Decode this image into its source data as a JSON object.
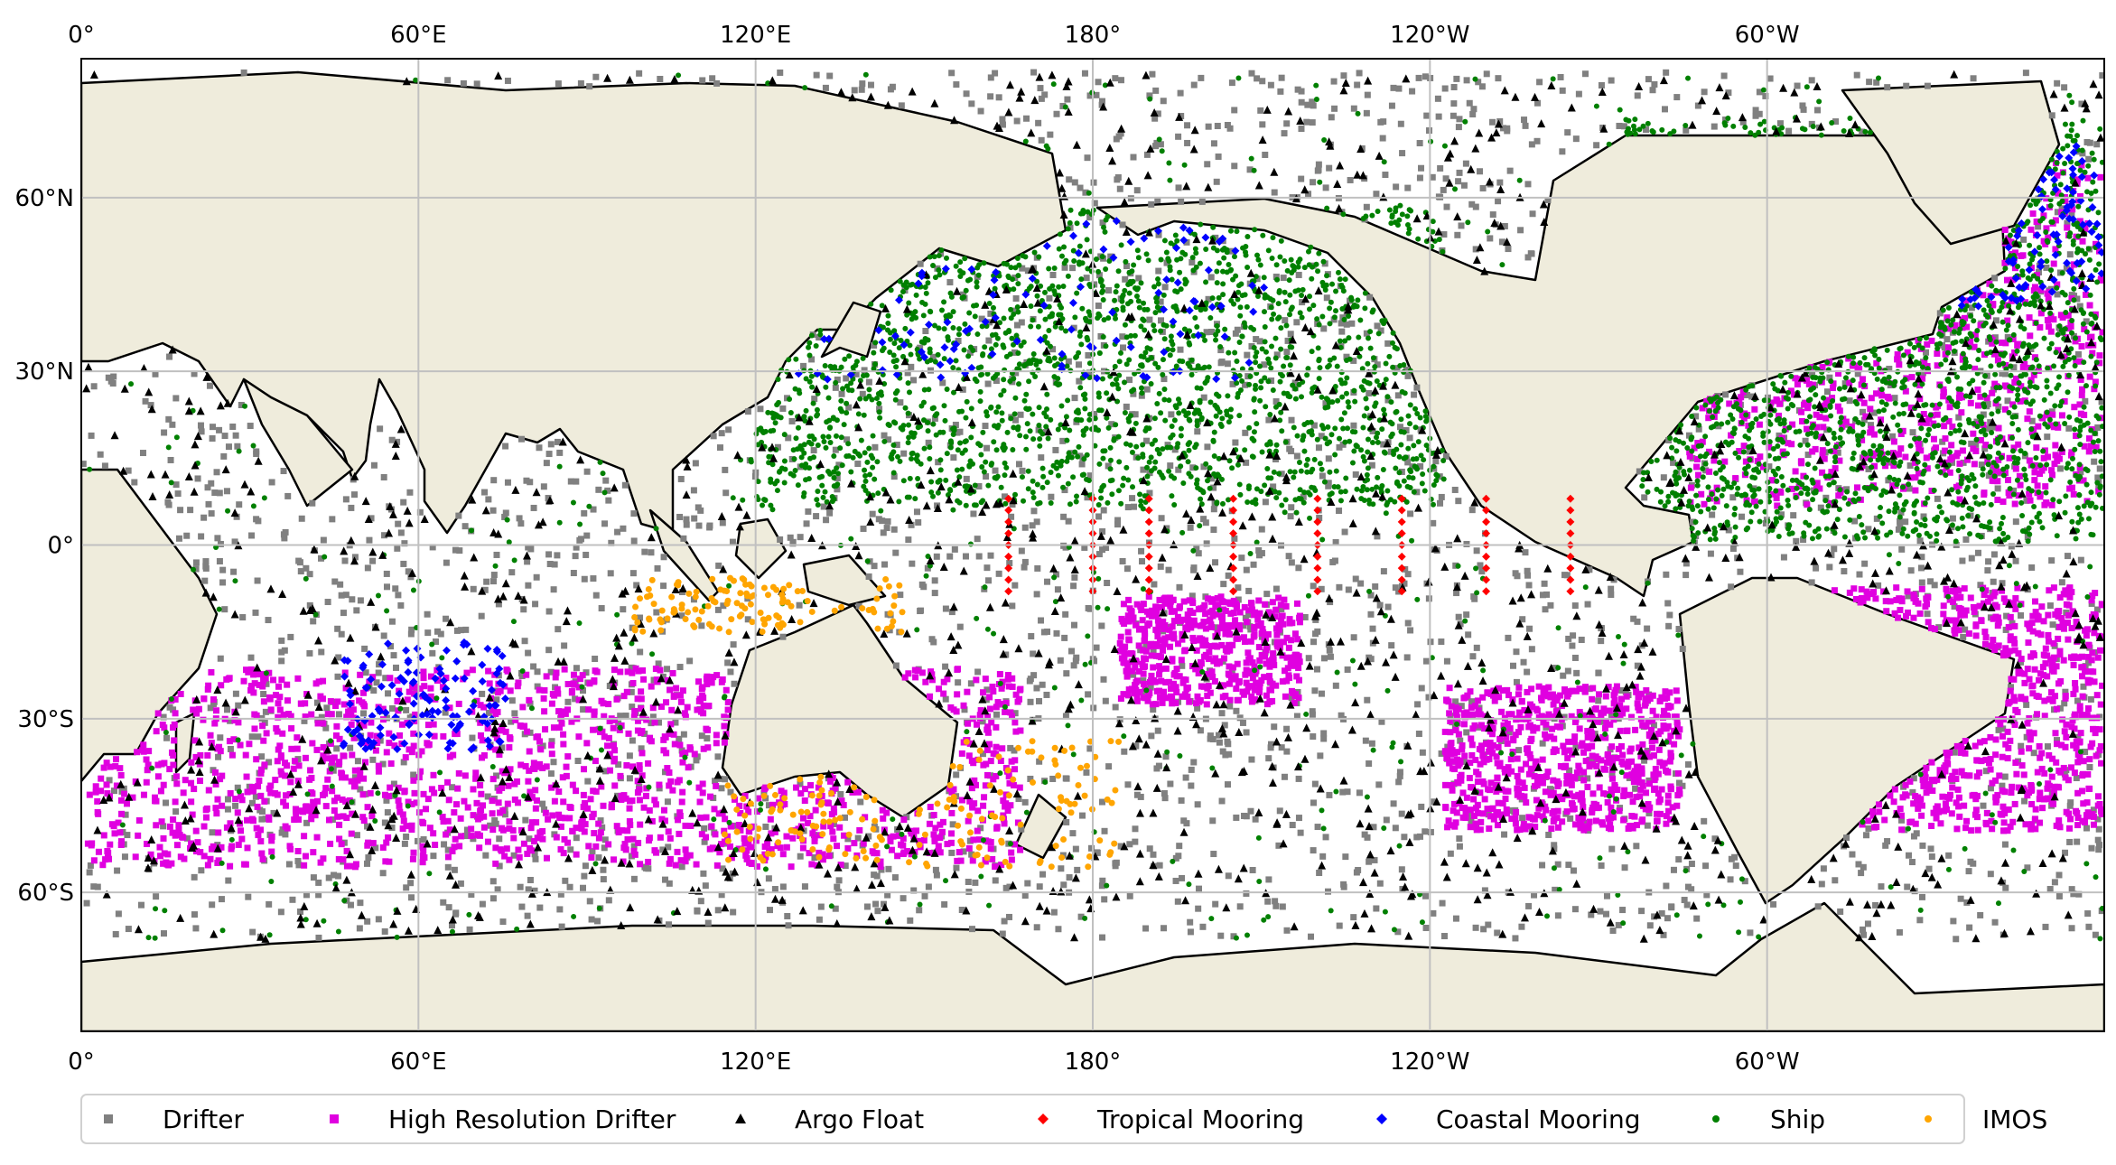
{
  "map": {
    "projection": "PlateCarree",
    "central_longitude": 180,
    "colors": {
      "land": "#efecdc",
      "ocean": "#ffffff",
      "coastline": "#000000",
      "gridline": "#c0c0c0",
      "frame": "#000000"
    },
    "top_ticks": [
      "0°",
      "60°E",
      "120°E",
      "180°",
      "120°W",
      "60°W"
    ],
    "bottom_ticks": [
      "0°",
      "60°E",
      "120°E",
      "180°",
      "120°W",
      "60°W"
    ],
    "left_ticks": [
      "60°N",
      "30°N",
      "0°",
      "30°S",
      "60°S"
    ],
    "gridlines_lon": [
      0,
      60,
      120,
      180,
      -120,
      -60
    ],
    "gridlines_lat": [
      60,
      30,
      0,
      -30,
      -60
    ]
  },
  "legend": {
    "placement": "bottom-center",
    "items": [
      {
        "label": "Drifter",
        "marker": "square",
        "color": "#808080"
      },
      {
        "label": "High Resolution Drifter",
        "marker": "square",
        "color": "#e000e0"
      },
      {
        "label": "Argo Float",
        "marker": "triangle",
        "color": "#000000"
      },
      {
        "label": "Tropical Mooring",
        "marker": "diamond",
        "color": "#ff0000"
      },
      {
        "label": "Coastal Mooring",
        "marker": "diamond",
        "color": "#0000ff"
      },
      {
        "label": "Ship",
        "marker": "circle",
        "color": "#008000"
      },
      {
        "label": "IMOS",
        "marker": "circle",
        "color": "#ffa500"
      }
    ]
  },
  "tropical_mooring_longitudes": [
    165,
    180,
    -170,
    -155,
    -140,
    -125,
    -110,
    -95
  ]
}
